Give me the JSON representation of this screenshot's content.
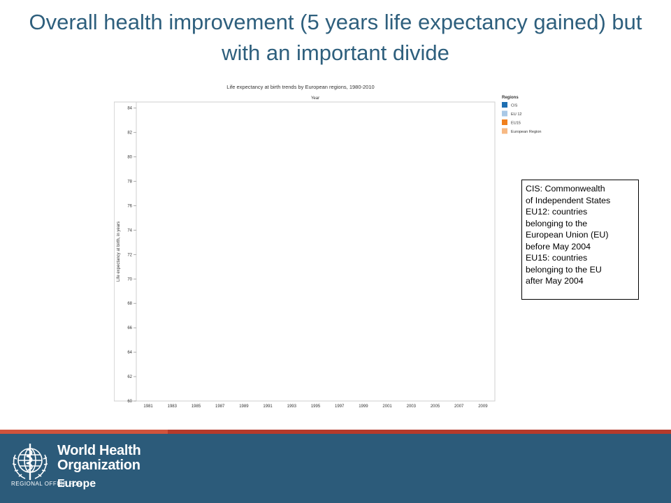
{
  "slide": {
    "title": "Overall health improvement (5 years life expectancy gained) but with an important divide",
    "note_lines": [
      "CIS: Commonwealth",
      "of Independent States",
      "EU12: countries",
      "belonging to the",
      "European Union (EU)",
      "before May 2004",
      "EU15: countries",
      "belonging to the EU",
      "after May 2004"
    ]
  },
  "footer": {
    "org_line1": "World Health",
    "org_line2": "Organization",
    "regional_office": "REGIONAL OFFICE FOR",
    "region": "Europe",
    "bar_color": "#2c5b7a",
    "strip_color": "#b53a2b"
  },
  "chart_data": {
    "type": "line",
    "title": "Life expectancy at birth trends by European regions, 1980-2010",
    "xlabel": "Year",
    "ylabel": "Life expectancy at birth, in years",
    "x_ticks": [
      "1981",
      "1983",
      "1985",
      "1987",
      "1989",
      "1991",
      "1993",
      "1995",
      "1997",
      "1999",
      "2001",
      "2003",
      "2005",
      "2007",
      "2009"
    ],
    "y_ticks": [
      60,
      62,
      64,
      66,
      68,
      70,
      72,
      74,
      76,
      78,
      80,
      82,
      84
    ],
    "ylim": [
      60,
      84.5
    ],
    "xlim": [
      1980,
      2010
    ],
    "legend_title": "Regions",
    "legend_position": "top-right",
    "series": [
      {
        "name": "CIS",
        "color": "#1f6fb2",
        "values": []
      },
      {
        "name": "EU 12",
        "color": "#a9c8e6",
        "values": []
      },
      {
        "name": "EU15",
        "color": "#f07f1c",
        "values": []
      },
      {
        "name": "European Region",
        "color": "#f7b983",
        "values": []
      }
    ],
    "grid": false
  }
}
